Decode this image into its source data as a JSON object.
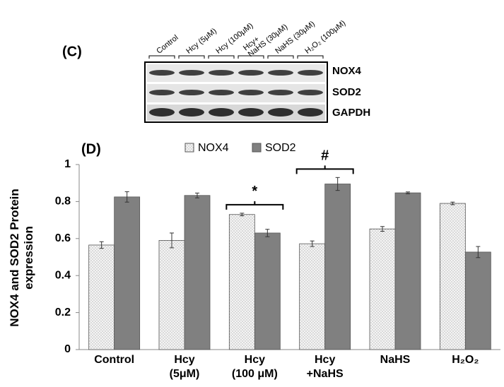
{
  "blot": {
    "label": "(C)",
    "lanes": [
      "Control",
      "Hcy (5μM)",
      "Hcy (100μM)",
      "Hcy+\nNaHS (30μM)",
      "NaHS (30μM)",
      "H₂O₂ (100μM)"
    ],
    "rows": [
      "NOX4",
      "SOD2",
      "GAPDH"
    ]
  },
  "chart_data": {
    "type": "bar",
    "panel_label": "(D)",
    "y_label": "NOX4 and SOD2 Protein\nexpression",
    "categories": [
      "Control",
      "Hcy\n(5μM)",
      "Hcy\n(100 μM)",
      "Hcy\n+NaHS",
      "NaHS",
      "H₂O₂"
    ],
    "series": [
      {
        "name": "NOX4",
        "color": "#f2f2f2",
        "values": [
          0.565,
          0.59,
          0.73,
          0.572,
          0.652,
          0.79
        ],
        "errors": [
          0.018,
          0.04,
          0.007,
          0.015,
          0.013,
          0.007
        ]
      },
      {
        "name": "SOD2",
        "color": "#808080",
        "values": [
          0.825,
          0.833,
          0.63,
          0.895,
          0.847,
          0.527
        ],
        "errors": [
          0.028,
          0.013,
          0.02,
          0.035,
          0.005,
          0.03
        ]
      }
    ],
    "significance": [
      null,
      null,
      "*",
      "#",
      null,
      null
    ],
    "ylim": [
      0,
      1
    ],
    "yticks": [
      0,
      0.2,
      0.4,
      0.6,
      0.8,
      1
    ],
    "grid": false
  }
}
